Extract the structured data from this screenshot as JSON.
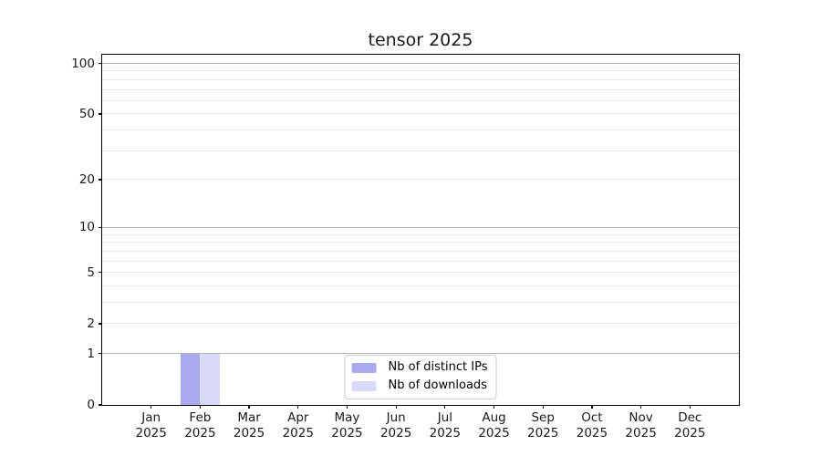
{
  "chart_data": {
    "type": "bar",
    "title": "tensor 2025",
    "categories": [
      {
        "month": "Jan",
        "year": "2025"
      },
      {
        "month": "Feb",
        "year": "2025"
      },
      {
        "month": "Mar",
        "year": "2025"
      },
      {
        "month": "Apr",
        "year": "2025"
      },
      {
        "month": "May",
        "year": "2025"
      },
      {
        "month": "Jun",
        "year": "2025"
      },
      {
        "month": "Jul",
        "year": "2025"
      },
      {
        "month": "Aug",
        "year": "2025"
      },
      {
        "month": "Sep",
        "year": "2025"
      },
      {
        "month": "Oct",
        "year": "2025"
      },
      {
        "month": "Nov",
        "year": "2025"
      },
      {
        "month": "Dec",
        "year": "2025"
      }
    ],
    "series": [
      {
        "name": "Nb of distinct IPs",
        "color": "#a9a9f0",
        "values": [
          0,
          1,
          0,
          0,
          0,
          0,
          0,
          0,
          0,
          0,
          0,
          0
        ]
      },
      {
        "name": "Nb of downloads",
        "color": "#d9d9f8",
        "values": [
          0,
          1,
          0,
          0,
          0,
          0,
          0,
          0,
          0,
          0,
          0,
          0
        ]
      }
    ],
    "y_axis": {
      "scale": "log1p",
      "labeled_ticks": [
        0,
        1,
        2,
        5,
        10,
        20,
        50,
        100
      ],
      "major_grid_values": [
        1,
        10,
        100
      ],
      "minor_grid_values": [
        2,
        3,
        4,
        5,
        6,
        7,
        8,
        9,
        20,
        30,
        40,
        50,
        60,
        70,
        80,
        90
      ],
      "max_tick": 100,
      "max_tick_fraction": 0.9752
    },
    "grid": {
      "major": true,
      "minor": true
    },
    "legend": {
      "position": "lower center"
    }
  },
  "colors": {
    "background": "#ffffff",
    "axis": "#000000",
    "text": "#1a1a1a",
    "grid_major": "#b0b0b0",
    "grid_minor": "#e8e8e8",
    "legend_border": "#cccccc"
  }
}
